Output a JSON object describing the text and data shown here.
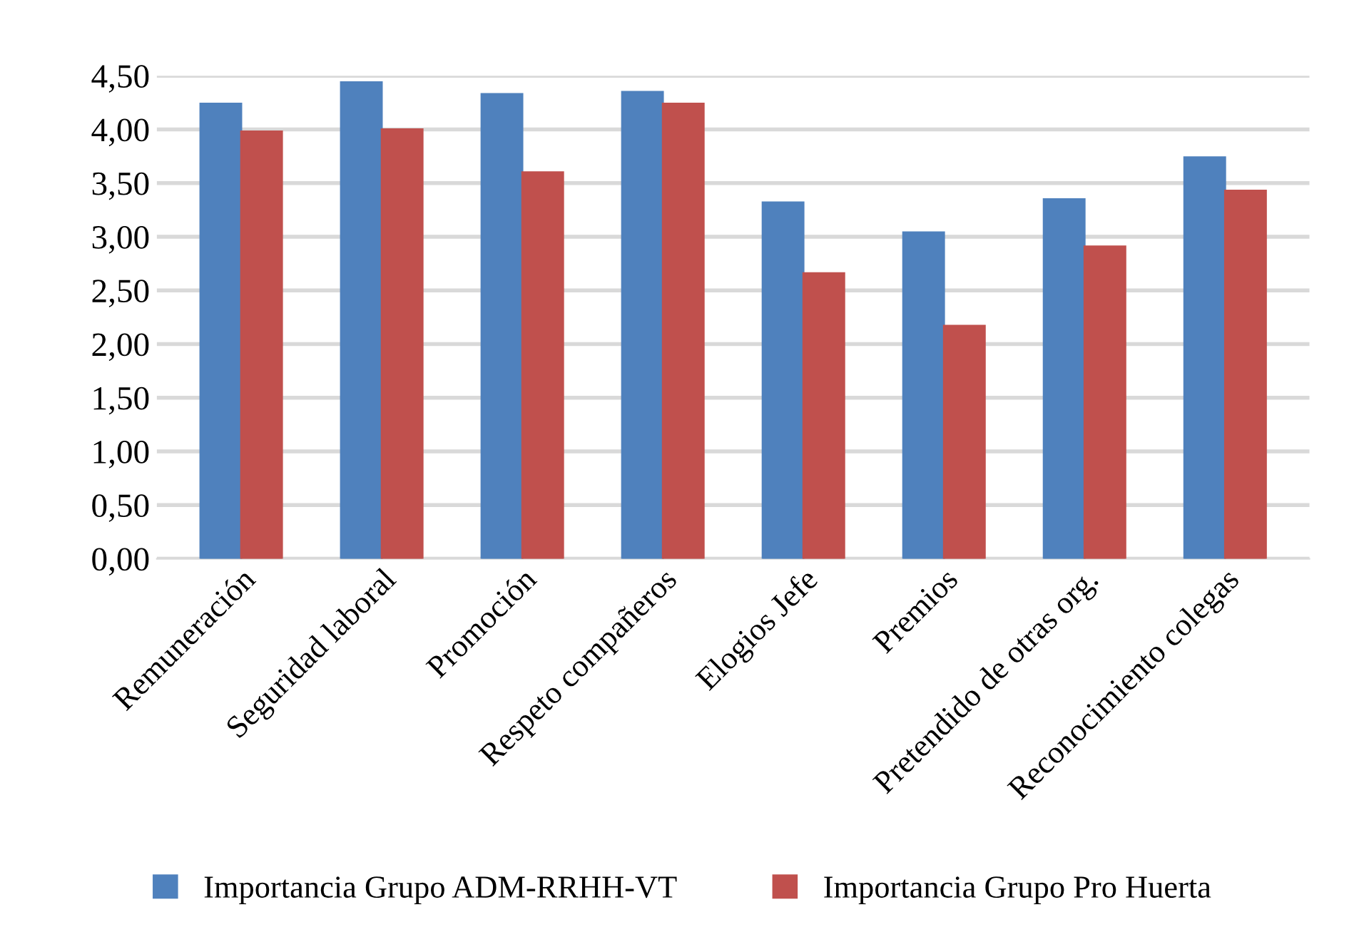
{
  "chart_data": {
    "type": "bar",
    "categories": [
      "Remuneración",
      "Seguridad laboral",
      "Promoción",
      "Respeto compañeros",
      "Elogios Jefe",
      "Premios",
      "Pretendido de otras org.",
      "Reconocimiento colegas"
    ],
    "series": [
      {
        "name": "Importancia Grupo ADM-RRHH-VT",
        "color": "#4f81bd",
        "values": [
          4.24,
          4.44,
          4.33,
          4.35,
          3.32,
          3.04,
          3.35,
          3.74
        ]
      },
      {
        "name": "Importancia Grupo Pro Huerta",
        "color": "#c0504d",
        "values": [
          3.98,
          4.0,
          3.6,
          4.24,
          2.66,
          2.17,
          2.91,
          3.43
        ]
      }
    ],
    "ylim": [
      0,
      4.5
    ],
    "yticks": [
      {
        "value": 0,
        "label": "0,00"
      },
      {
        "value": 0.5,
        "label": "0,50"
      },
      {
        "value": 1,
        "label": "1,00"
      },
      {
        "value": 1.5,
        "label": "1,50"
      },
      {
        "value": 2,
        "label": "2,00"
      },
      {
        "value": 2.5,
        "label": "2,50"
      },
      {
        "value": 3,
        "label": "3,00"
      },
      {
        "value": 3.5,
        "label": "3,50"
      },
      {
        "value": 4,
        "label": "4,00"
      },
      {
        "value": 4.5,
        "label": "4,50"
      }
    ],
    "grid": "y",
    "legend": "bottom"
  }
}
